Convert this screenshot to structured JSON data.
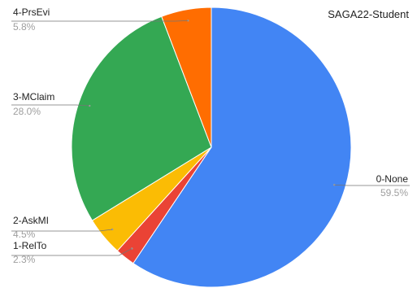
{
  "chart_data": {
    "type": "pie",
    "title": "SAGA22-Student",
    "start_angle_deg": 0,
    "direction": "clockwise",
    "legend": "none",
    "slices": [
      {
        "label": "0-None",
        "value": 59.5,
        "percent_label": "59.5%",
        "color": "#4285f4"
      },
      {
        "label": "1-RelTo",
        "value": 2.3,
        "percent_label": "2.3%",
        "color": "#ea4335"
      },
      {
        "label": "2-AskMI",
        "value": 4.5,
        "percent_label": "4.5%",
        "color": "#fbbc04"
      },
      {
        "label": "3-MClaim",
        "value": 28.0,
        "percent_label": "28.0%",
        "color": "#34a853"
      },
      {
        "label": "4-PrsEvi",
        "value": 5.8,
        "percent_label": "5.8%",
        "color": "#ff6d01"
      }
    ]
  }
}
